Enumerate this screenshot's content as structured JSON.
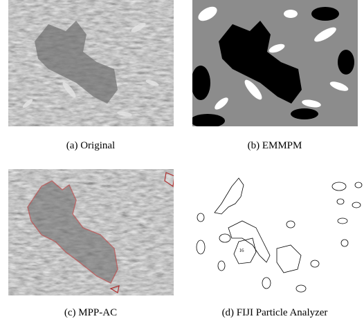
{
  "figure": {
    "panels": [
      {
        "caption": "(a) Original"
      },
      {
        "caption": "(b) EMMPM"
      },
      {
        "caption": "(c) MPP-AC"
      },
      {
        "caption": "(d) FIJI Particle Analyzer",
        "annotation": "16"
      }
    ]
  }
}
